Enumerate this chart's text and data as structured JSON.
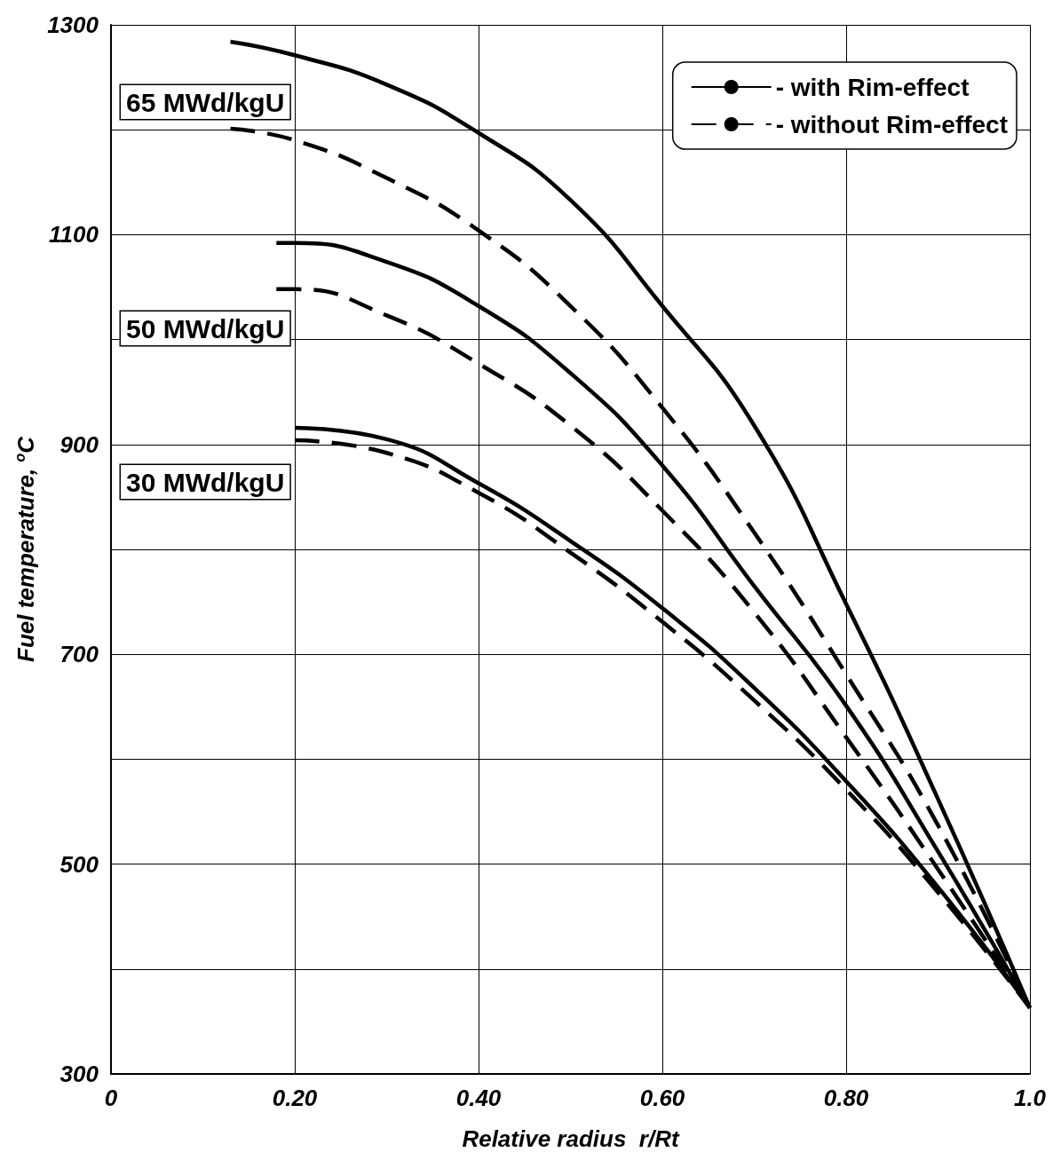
{
  "chart_data": {
    "type": "line",
    "xlabel": "Relative radius  r/Rt",
    "ylabel": "Fuel temperature, $^{o}$C",
    "xlim": [
      0,
      1.0
    ],
    "xticks": [
      {
        "value": 0,
        "label": "0"
      },
      {
        "value": 0.2,
        "label": "0.20"
      },
      {
        "value": 0.4,
        "label": "0.40"
      },
      {
        "value": 0.6,
        "label": "0.60"
      },
      {
        "value": 0.8,
        "label": "0.80"
      },
      {
        "value": 1.0,
        "label": "1.0"
      }
    ],
    "ylim": [
      300,
      1300
    ],
    "yticks": [
      300,
      {
        "value": 400,
        "label": null
      },
      500,
      {
        "value": 600,
        "label": null
      },
      700,
      {
        "value": 800,
        "label": null
      },
      900,
      {
        "value": 1000,
        "label": null
      },
      1100,
      {
        "value": 1200,
        "label": null
      },
      1300
    ],
    "grid": true,
    "legend": "top right",
    "marker": "none",
    "series": [
      {
        "name": "- with Rim-effect",
        "color": "#000000",
        "line_style": "solid",
        "x": [
          0.13,
          0.2,
          0.3,
          0.4,
          0.5,
          0.6,
          0.7,
          0.8,
          0.9,
          1.0
        ],
        "values": [
          1284,
          1271,
          1243,
          1197,
          1133,
          1032,
          918,
          748,
          562,
          363
        ]
      },
      {
        "name": "- without Rim-effect",
        "color": "#000000",
        "line_style": "dashed",
        "x": [
          0.13,
          0.2,
          0.3,
          0.4,
          0.5,
          0.6,
          0.7,
          0.8,
          0.9,
          1.0
        ],
        "values": [
          1201,
          1190,
          1154,
          1104,
          1032,
          935,
          816,
          681,
          537,
          363
        ]
      },
      {
        "color": "#000000",
        "line_style": "solid",
        "x": [
          0.18,
          0.2,
          0.3,
          0.4,
          0.5,
          0.6,
          0.7,
          0.8,
          0.9,
          1.0
        ],
        "values": [
          1092,
          1092,
          1074,
          1032,
          968,
          880,
          765,
          651,
          512,
          363
        ]
      },
      {
        "color": "#000000",
        "line_style": "dashed",
        "x": [
          0.18,
          0.2,
          0.3,
          0.4,
          0.5,
          0.6,
          0.7,
          0.8,
          0.9,
          1.0
        ],
        "values": [
          1048,
          1048,
          1023,
          977,
          918,
          837,
          740,
          621,
          495,
          363
        ]
      },
      {
        "color": "#000000",
        "line_style": "solid",
        "x": [
          0.2,
          0.3,
          0.4,
          0.5,
          0.6,
          0.7,
          0.8,
          0.9,
          1.0
        ],
        "values": [
          916,
          905,
          863,
          808,
          744,
          668,
          579,
          478,
          363
        ]
      },
      {
        "color": "#000000",
        "line_style": "dashed",
        "x": [
          0.2,
          0.3,
          0.4,
          0.5,
          0.6,
          0.7,
          0.8,
          0.9,
          1.0
        ],
        "values": [
          904,
          892,
          854,
          797,
          731,
          656,
          571,
          473,
          363
        ]
      }
    ],
    "annotations": [
      "65 MWd/kgU",
      "50 MWd/kgU",
      "30 MWd/kgU"
    ]
  }
}
